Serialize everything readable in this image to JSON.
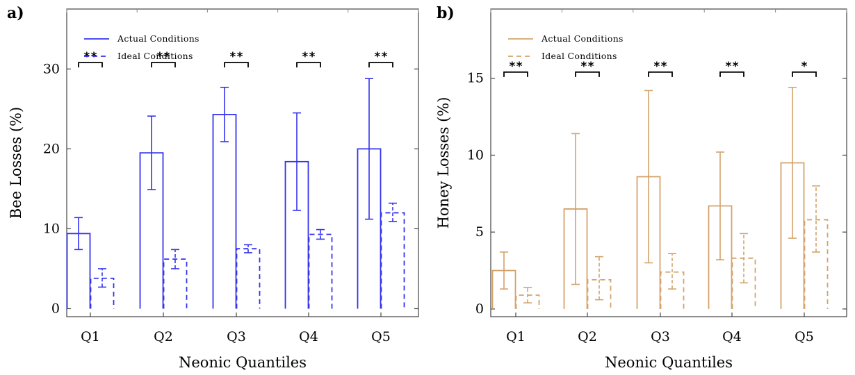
{
  "chart_data": [
    {
      "panel": "a)",
      "type": "bar",
      "xlabel": "Neonic Quantiles",
      "ylabel": "Bee Losses (%)",
      "ylim": [
        -1,
        37.5
      ],
      "yticks": [
        0,
        10,
        20,
        30
      ],
      "categories": [
        "Q1",
        "Q2",
        "Q3",
        "Q4",
        "Q5"
      ],
      "color": "#3333ee",
      "series": [
        {
          "name": "Actual Conditions",
          "style": "solid",
          "values": [
            9.4,
            19.5,
            24.3,
            18.4,
            20.0
          ],
          "err_low": [
            7.4,
            14.9,
            20.9,
            12.3,
            11.2
          ],
          "err_high": [
            11.4,
            24.1,
            27.7,
            24.5,
            28.8
          ]
        },
        {
          "name": "Ideal Conditions",
          "style": "dashed",
          "values": [
            3.8,
            6.2,
            7.5,
            9.3,
            12.0
          ],
          "err_low": [
            2.7,
            5.0,
            7.0,
            8.7,
            10.9
          ],
          "err_high": [
            5.0,
            7.4,
            8.0,
            9.9,
            13.2
          ]
        }
      ],
      "significance": [
        "**",
        "**",
        "**",
        "**",
        "**"
      ],
      "significance_level": 30.8,
      "legend": "top-left",
      "grid": false
    },
    {
      "panel": "b)",
      "type": "bar",
      "xlabel": "Neonic Quantiles",
      "ylabel": "Honey Losses (%)",
      "ylim": [
        -0.5,
        19.5
      ],
      "yticks": [
        0,
        5,
        10,
        15
      ],
      "categories": [
        "Q1",
        "Q2",
        "Q3",
        "Q4",
        "Q5"
      ],
      "color": "#d4a26a",
      "series": [
        {
          "name": "Actual Conditions",
          "style": "solid",
          "values": [
            2.5,
            6.5,
            8.6,
            6.7,
            9.5
          ],
          "err_low": [
            1.3,
            1.6,
            3.0,
            3.2,
            4.6
          ],
          "err_high": [
            3.7,
            11.4,
            14.2,
            10.2,
            14.4
          ]
        },
        {
          "name": "Ideal Conditions",
          "style": "dashed",
          "values": [
            0.9,
            1.9,
            2.4,
            3.3,
            5.8
          ],
          "err_low": [
            0.4,
            0.6,
            1.3,
            1.7,
            3.7
          ],
          "err_high": [
            1.4,
            3.4,
            3.6,
            4.9,
            8.0
          ]
        }
      ],
      "significance": [
        "**",
        "**",
        "**",
        "**",
        "*"
      ],
      "significance_level": 15.4,
      "legend": "top-left",
      "grid": false
    }
  ]
}
